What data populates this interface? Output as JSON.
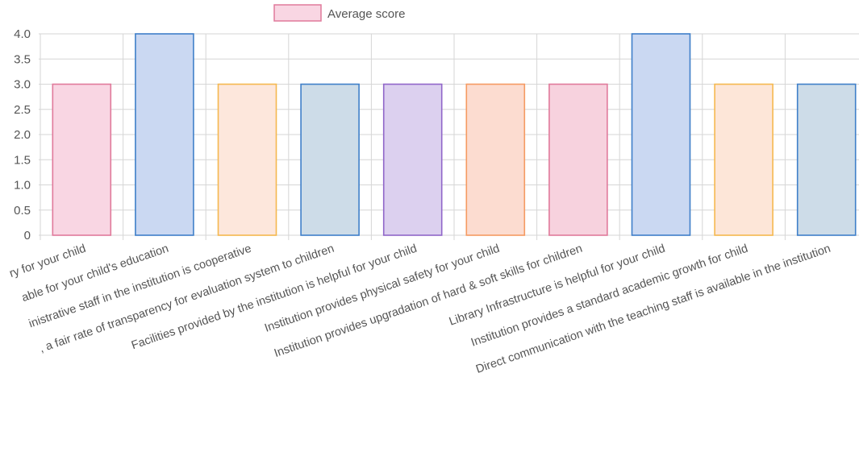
{
  "chart_data": {
    "type": "bar",
    "legend": {
      "label": "Average score",
      "position": "top",
      "swatch_fill": "#f9d6e3",
      "swatch_stroke": "#e07a9b"
    },
    "series": [
      {
        "name": "Average score",
        "values": [
          3.0,
          4.0,
          3.0,
          3.0,
          3.0,
          3.0,
          3.0,
          4.0,
          3.0,
          3.0
        ]
      }
    ],
    "categories": [
      "ry for your child",
      "able for your child's education",
      "inistrative staff in the institution is cooperative",
      ", a fair rate of transparency for evaluation system to children",
      "Facilities provided by the institution is helpful for your child",
      "Institution provides physical safety for your child",
      "Institution provides upgradation of hard & soft skills for children",
      "Library Infrastructure is helpful for your child",
      "Institution provides a standard academic growth for child",
      "Direct communication with the teaching staff is available in the institution"
    ],
    "yticks": [
      "0",
      "0.5",
      "1.0",
      "1.5",
      "2.0",
      "2.5",
      "3.0",
      "3.5",
      "4.0"
    ],
    "ylim": [
      0,
      4
    ],
    "grid": true,
    "colors": {
      "fills": [
        "#f9d6e3",
        "#cad8f2",
        "#fde7dc",
        "#cddce8",
        "#dcd0ef",
        "#fcdcd0",
        "#f7d2de",
        "#cad8f2",
        "#fde6d8",
        "#cddce8"
      ],
      "strokes": [
        "#e07a9b",
        "#3f7fc9",
        "#f5b84e",
        "#3f7fc9",
        "#9066c9",
        "#f59a62",
        "#e07a9b",
        "#3f7fc9",
        "#f5b84e",
        "#3f7fc9"
      ],
      "grid": "#d6d6d6",
      "text": "#555555"
    }
  }
}
